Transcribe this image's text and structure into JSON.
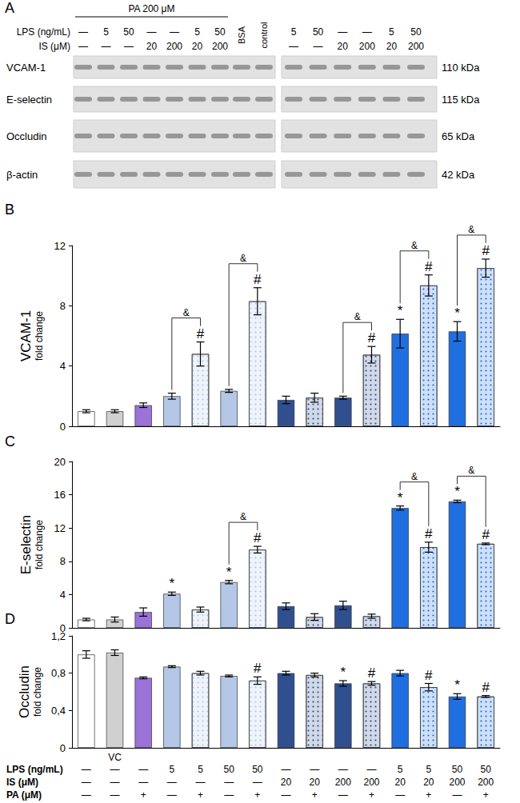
{
  "chart_data": [
    {
      "type": "bar",
      "title": "B",
      "ylabel": [
        "VCAM-1",
        "fold change"
      ],
      "categories": [
        null,
        null,
        null,
        null,
        null,
        null,
        null,
        null,
        null,
        null,
        null,
        null,
        null,
        null,
        null
      ],
      "values": [
        1.0,
        1.0,
        1.4,
        2.0,
        4.8,
        2.35,
        8.3,
        1.75,
        1.9,
        1.9,
        4.75,
        6.15,
        9.35,
        6.3,
        10.5
      ],
      "errors": [
        0.1,
        0.1,
        0.15,
        0.2,
        0.8,
        0.1,
        0.9,
        0.25,
        0.3,
        0.1,
        0.55,
        0.95,
        0.7,
        0.65,
        0.6
      ],
      "significance": [
        null,
        null,
        null,
        null,
        "#",
        null,
        "#",
        null,
        null,
        null,
        "#",
        "*",
        "#",
        "*",
        "#"
      ],
      "brackets": [
        {
          "from": 3,
          "to": 4,
          "label": "&"
        },
        {
          "from": 5,
          "to": 6,
          "label": "&"
        },
        {
          "from": 9,
          "to": 10,
          "label": "&"
        },
        {
          "from": 11,
          "to": 12,
          "label": "&"
        },
        {
          "from": 13,
          "to": 14,
          "label": "&"
        }
      ],
      "colors": [
        "#ffffff",
        "#d0d0d0",
        "#9b72d8",
        "#b4c7e7",
        "#b4c7e7",
        "#b4c7e7",
        "#b4c7e7",
        "#2f4f8f",
        "#2f4f8f",
        "#2f4f8f",
        "#2f4f8f",
        "#1f6fe0",
        "#1f6fe0",
        "#1f6fe0",
        "#1f6fe0"
      ],
      "ylim": [
        0,
        12
      ],
      "yticks": [
        0,
        4,
        8,
        12
      ],
      "grid": false
    },
    {
      "type": "bar",
      "title": "C",
      "ylabel": [
        "E-selectin",
        "fold change"
      ],
      "categories": [
        null,
        null,
        null,
        null,
        null,
        null,
        null,
        null,
        null,
        null,
        null,
        null,
        null,
        null,
        null
      ],
      "values": [
        1.0,
        1.0,
        1.9,
        4.1,
        2.2,
        5.5,
        9.4,
        2.6,
        1.3,
        2.7,
        1.4,
        14.4,
        9.7,
        15.2,
        10.1
      ],
      "errors": [
        0.15,
        0.3,
        0.5,
        0.2,
        0.3,
        0.2,
        0.4,
        0.4,
        0.4,
        0.5,
        0.25,
        0.25,
        0.6,
        0.15,
        0.1
      ],
      "significance": [
        null,
        null,
        null,
        "*",
        null,
        "*",
        "#",
        null,
        null,
        null,
        null,
        "*",
        "#",
        "*",
        "#"
      ],
      "brackets": [
        {
          "from": 5,
          "to": 6,
          "label": "&"
        },
        {
          "from": 11,
          "to": 12,
          "label": "&"
        },
        {
          "from": 13,
          "to": 14,
          "label": "&"
        }
      ],
      "colors": [
        "#ffffff",
        "#d0d0d0",
        "#9b72d8",
        "#b4c7e7",
        "#b4c7e7",
        "#b4c7e7",
        "#b4c7e7",
        "#2f4f8f",
        "#2f4f8f",
        "#2f4f8f",
        "#2f4f8f",
        "#1f6fe0",
        "#1f6fe0",
        "#1f6fe0",
        "#1f6fe0"
      ],
      "ylim": [
        0,
        20
      ],
      "yticks": [
        0,
        4,
        8,
        12,
        16,
        20
      ],
      "grid": false
    },
    {
      "type": "bar",
      "title": "D",
      "ylabel": [
        "Occludin",
        "fold change"
      ],
      "categories": [
        null,
        "VC",
        null,
        null,
        null,
        null,
        null,
        null,
        null,
        null,
        null,
        null,
        null,
        null,
        null
      ],
      "values": [
        1.0,
        1.02,
        0.75,
        0.87,
        0.8,
        0.77,
        0.72,
        0.8,
        0.78,
        0.69,
        0.69,
        0.8,
        0.65,
        0.55,
        0.55
      ],
      "errors": [
        0.04,
        0.03,
        0.01,
        0.01,
        0.02,
        0.01,
        0.04,
        0.02,
        0.02,
        0.03,
        0.02,
        0.03,
        0.04,
        0.03,
        0.01
      ],
      "significance": [
        null,
        null,
        null,
        null,
        null,
        null,
        "#",
        null,
        null,
        "*",
        "#",
        null,
        "#",
        "*",
        "#"
      ],
      "brackets": [],
      "colors": [
        "#ffffff",
        "#d0d0d0",
        "#9b72d8",
        "#b4c7e7",
        "#b4c7e7",
        "#b4c7e7",
        "#b4c7e7",
        "#2f4f8f",
        "#2f4f8f",
        "#2f4f8f",
        "#2f4f8f",
        "#1f6fe0",
        "#1f6fe0",
        "#1f6fe0",
        "#1f6fe0"
      ],
      "ylim": [
        0,
        1.2
      ],
      "yticks": [
        0,
        {
          "value": 0.4,
          "label": "0,4"
        },
        {
          "value": 0.8,
          "label": "0,8"
        },
        {
          "value": 1.2,
          "label": "1,2"
        }
      ],
      "grid": false
    }
  ],
  "conditions": {
    "rows": [
      {
        "label": "LPS (ng/mL)",
        "cells": [
          "—",
          "—",
          "—",
          "5",
          "5",
          "50",
          "50",
          "—",
          "—",
          "—",
          "—",
          "5",
          "5",
          "50",
          "50"
        ]
      },
      {
        "label": "IS (μM)",
        "cells": [
          "—",
          "—",
          "—",
          "—",
          "—",
          "—",
          "—",
          "20",
          "20",
          "200",
          "200",
          "20",
          "20",
          "200",
          "200"
        ]
      },
      {
        "label": "PA (μM)",
        "cells": [
          "—",
          "—",
          "+",
          "—",
          "+",
          "—",
          "+",
          "—",
          "+",
          "—",
          "+",
          "—",
          "+",
          "—",
          "+"
        ]
      }
    ]
  },
  "blot": {
    "panel": "A",
    "header": "PA 200 μM",
    "row_labels": [
      "LPS (ng/mL)",
      "IS (μM)"
    ],
    "left_lanes": {
      "LPS": [
        "—",
        "5",
        "50",
        "—",
        "—",
        "5",
        "50"
      ],
      "IS": [
        "—",
        "—",
        "—",
        "20",
        "200",
        "20",
        "200"
      ],
      "controls": [
        "BSA",
        "control"
      ]
    },
    "right_lanes": {
      "LPS": [
        "5",
        "50",
        "—",
        "—",
        "5",
        "50"
      ],
      "IS": [
        "—",
        "—",
        "20",
        "200",
        "20",
        "200"
      ]
    },
    "proteins": [
      {
        "name": "VCAM-1",
        "size": "110 kDa"
      },
      {
        "name": "E-selectin",
        "size": "115 kDa"
      },
      {
        "name": "Occludin",
        "size": "65 kDa"
      },
      {
        "name": "β-actin",
        "size": "42 kDa"
      }
    ]
  }
}
